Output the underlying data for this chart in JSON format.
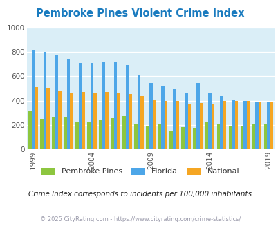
{
  "title": "Pembroke Pines Violent Crime Index",
  "title_color": "#1a7bbf",
  "subtitle": "Crime Index corresponds to incidents per 100,000 inhabitants",
  "subtitle_color": "#222222",
  "footer": "© 2025 CityRating.com - https://www.cityrating.com/crime-statistics/",
  "footer_color": "#9999aa",
  "years": [
    1999,
    2000,
    2001,
    2002,
    2003,
    2004,
    2005,
    2006,
    2007,
    2008,
    2009,
    2010,
    2011,
    2012,
    2013,
    2014,
    2015,
    2016,
    2017,
    2018,
    2019
  ],
  "pembroke_pines": [
    315,
    250,
    260,
    265,
    230,
    230,
    240,
    255,
    275,
    210,
    195,
    205,
    155,
    180,
    175,
    220,
    205,
    195,
    195,
    210,
    210
  ],
  "florida": [
    810,
    800,
    775,
    735,
    710,
    710,
    715,
    715,
    690,
    610,
    545,
    515,
    495,
    460,
    545,
    465,
    435,
    405,
    395,
    390,
    385
  ],
  "national": [
    510,
    500,
    475,
    465,
    470,
    465,
    470,
    465,
    455,
    435,
    405,
    395,
    395,
    375,
    380,
    375,
    395,
    400,
    395,
    385,
    385
  ],
  "bar_colors": {
    "pembroke_pines": "#8dc63f",
    "florida": "#4da6e8",
    "national": "#f5a623"
  },
  "ylim": [
    0,
    1000
  ],
  "yticks": [
    0,
    200,
    400,
    600,
    800,
    1000
  ],
  "xtick_years": [
    1999,
    2004,
    2009,
    2014,
    2019
  ],
  "plot_bg_color": "#daeef7",
  "fig_bg_color": "#ffffff",
  "legend_labels": [
    "Pembroke Pines",
    "Florida",
    "National"
  ],
  "legend_colors": [
    "#8dc63f",
    "#4da6e8",
    "#f5a623"
  ],
  "bar_width": 0.27
}
